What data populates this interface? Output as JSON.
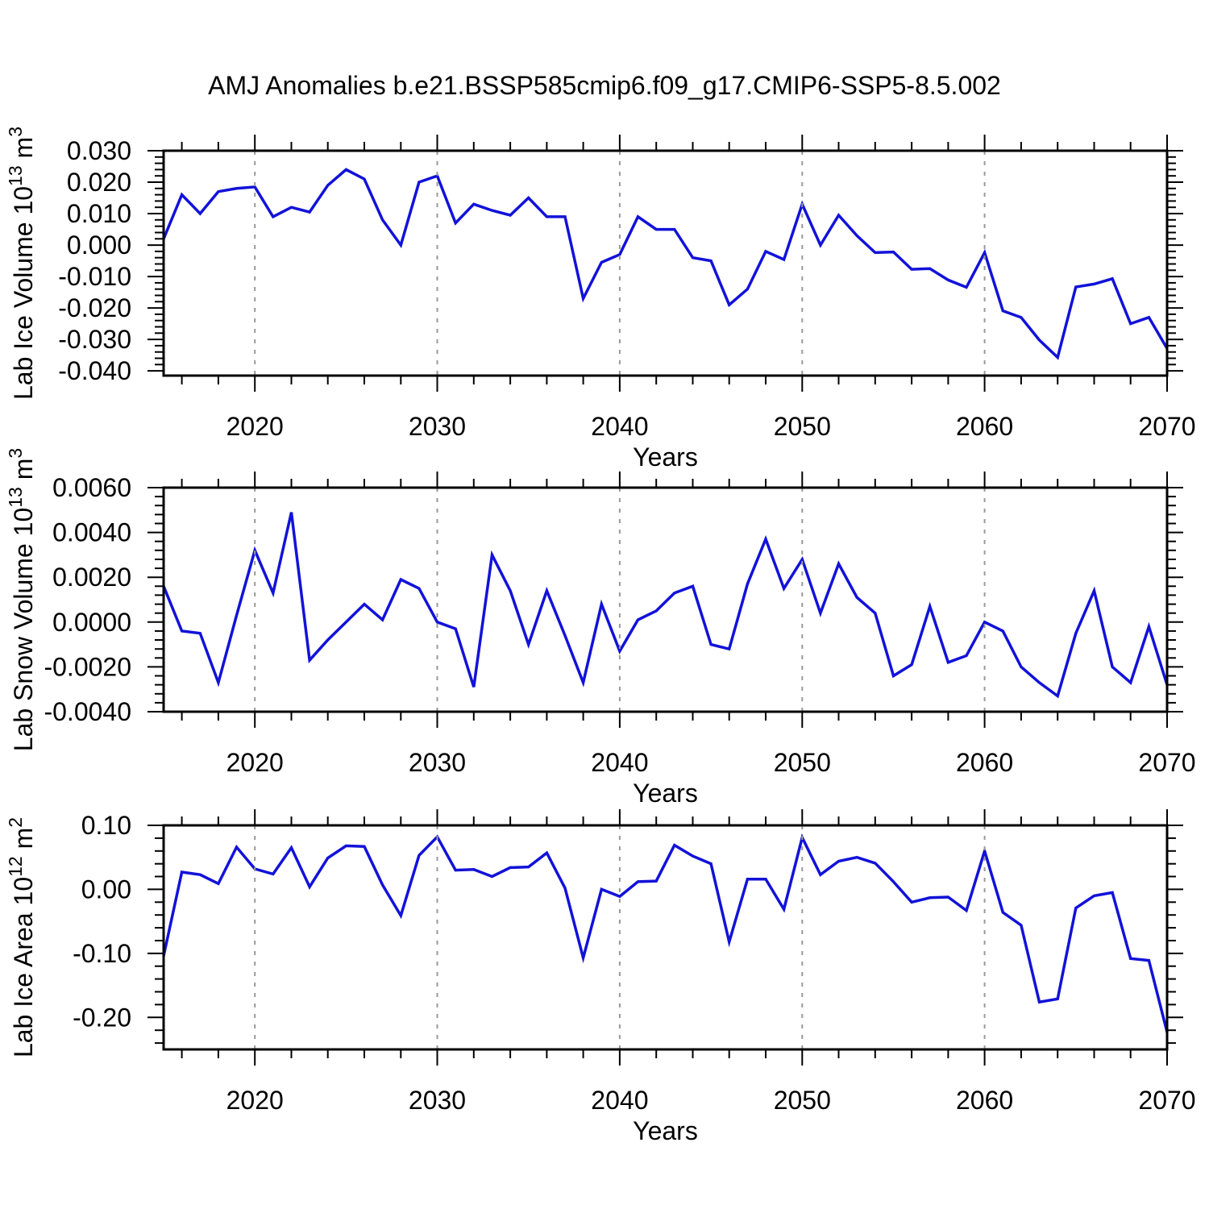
{
  "title": "AMJ Anomalies b.e21.BSSP585cmip6.f09_g17.CMIP6-SSP5-8.5.002",
  "style": {
    "line_color": "#1212d9",
    "grid_color": "#999999",
    "axis_color": "#000000",
    "background": "#ffffff"
  },
  "chart_data": [
    {
      "type": "line",
      "id": "lab-ice-volume",
      "ylabel_text": "Lab Ice Volume 10^13 m^3",
      "ylabel_parts": [
        {
          "t": "Lab Ice Volume 10"
        },
        {
          "t": "13",
          "sup": true
        },
        {
          "t": " m"
        },
        {
          "t": "3",
          "sup": true
        }
      ],
      "xlabel": "Years",
      "x_start": 2015,
      "x_step": 1,
      "xlim": [
        2015,
        2070
      ],
      "xticks_major": [
        2020,
        2030,
        2040,
        2050,
        2060,
        2070
      ],
      "xtick_labels": [
        "2020",
        "2030",
        "2040",
        "2050",
        "2060",
        "2070"
      ],
      "xticks_minor_step": 2,
      "grid_x": [
        2020,
        2030,
        2040,
        2050,
        2060
      ],
      "ylim": [
        -0.0415,
        0.03
      ],
      "yticks_major": [
        0.03,
        0.02,
        0.01,
        0.0,
        -0.01,
        -0.02,
        -0.03,
        -0.04
      ],
      "ytick_labels": [
        "0.030",
        "0.020",
        "0.010",
        "0.000",
        "-0.010",
        "-0.020",
        "-0.030",
        "-0.040"
      ],
      "yticks_minor_step": 0.002,
      "values": [
        0.002,
        0.016,
        0.01,
        0.017,
        0.018,
        0.0185,
        0.009,
        0.012,
        0.0105,
        0.019,
        0.024,
        0.021,
        0.008,
        0.0,
        0.02,
        0.022,
        0.007,
        0.013,
        0.011,
        0.0095,
        0.015,
        0.009,
        0.009,
        -0.017,
        -0.0055,
        -0.003,
        0.009,
        0.005,
        0.005,
        -0.004,
        -0.005,
        -0.019,
        -0.014,
        -0.002,
        -0.0046,
        0.013,
        0.0,
        0.0095,
        0.003,
        -0.0024,
        -0.0022,
        -0.0077,
        -0.0075,
        -0.0111,
        -0.0134,
        -0.0024,
        -0.0209,
        -0.023,
        -0.0302,
        -0.0357,
        -0.0133,
        -0.0124,
        -0.0107,
        -0.025,
        -0.023,
        -0.0329
      ]
    },
    {
      "type": "line",
      "id": "lab-snow-volume",
      "ylabel_text": "Lab Snow Volume 10^13 m^3",
      "ylabel_parts": [
        {
          "t": "Lab Snow Volume 10"
        },
        {
          "t": "13",
          "sup": true
        },
        {
          "t": " m"
        },
        {
          "t": "3",
          "sup": true
        }
      ],
      "xlabel": "Years",
      "x_start": 2015,
      "x_step": 1,
      "xlim": [
        2015,
        2070
      ],
      "xticks_major": [
        2020,
        2030,
        2040,
        2050,
        2060,
        2070
      ],
      "xtick_labels": [
        "2020",
        "2030",
        "2040",
        "2050",
        "2060",
        "2070"
      ],
      "xticks_minor_step": 2,
      "grid_x": [
        2020,
        2030,
        2040,
        2050,
        2060
      ],
      "ylim": [
        -0.004,
        0.006
      ],
      "yticks_major": [
        0.006,
        0.004,
        0.002,
        0.0,
        -0.002,
        -0.004
      ],
      "ytick_labels": [
        "0.0060",
        "0.0040",
        "0.0020",
        "0.0000",
        "-0.0020",
        "-0.0040"
      ],
      "yticks_minor_step": 0.0004,
      "values": [
        0.0016,
        -0.0004,
        -0.0005,
        -0.0027,
        0.0003,
        0.0032,
        0.0013,
        0.0049,
        -0.0017,
        -0.0008,
        0.0,
        0.0008,
        0.0001,
        0.0019,
        0.0015,
        0.0,
        -0.0003,
        -0.0029,
        0.003,
        0.0014,
        -0.001,
        0.0014,
        -0.0006,
        -0.0027,
        0.0008,
        -0.0013,
        0.0001,
        0.0005,
        0.0013,
        0.0016,
        -0.001,
        -0.0012,
        0.0017,
        0.0037,
        0.0015,
        0.0028,
        0.0004,
        0.0026,
        0.0011,
        0.0004,
        -0.0024,
        -0.0019,
        0.0007,
        -0.0018,
        -0.0015,
        0.0,
        -0.0004,
        -0.002,
        -0.0027,
        -0.0033,
        -0.0005,
        0.0014,
        -0.002,
        -0.0027,
        -0.0002,
        -0.0028
      ]
    },
    {
      "type": "line",
      "id": "lab-ice-area",
      "ylabel_text": "Lab Ice Area 10^12 m^2",
      "ylabel_parts": [
        {
          "t": "Lab Ice Area 10"
        },
        {
          "t": "12",
          "sup": true
        },
        {
          "t": " m"
        },
        {
          "t": "2",
          "sup": true
        }
      ],
      "xlabel": "Years",
      "x_start": 2015,
      "x_step": 1,
      "xlim": [
        2015,
        2070
      ],
      "xticks_major": [
        2020,
        2030,
        2040,
        2050,
        2060,
        2070
      ],
      "xtick_labels": [
        "2020",
        "2030",
        "2040",
        "2050",
        "2060",
        "2070"
      ],
      "xticks_minor_step": 2,
      "grid_x": [
        2020,
        2030,
        2040,
        2050,
        2060
      ],
      "ylim": [
        -0.25,
        0.1
      ],
      "yticks_major": [
        0.1,
        0.0,
        -0.1,
        -0.2
      ],
      "ytick_labels": [
        "0.10",
        "0.00",
        "-0.10",
        "-0.20"
      ],
      "yticks_minor_step": 0.02,
      "values": [
        -0.104,
        0.027,
        0.023,
        0.009,
        0.066,
        0.032,
        0.024,
        0.065,
        0.004,
        0.049,
        0.068,
        0.067,
        0.007,
        -0.041,
        0.053,
        0.082,
        0.03,
        0.031,
        0.02,
        0.034,
        0.035,
        0.057,
        0.002,
        -0.107,
        0.0,
        -0.011,
        0.012,
        0.013,
        0.069,
        0.052,
        0.04,
        -0.082,
        0.016,
        0.016,
        -0.031,
        0.081,
        0.023,
        0.044,
        0.05,
        0.041,
        0.012,
        -0.02,
        -0.013,
        -0.012,
        -0.033,
        0.06,
        -0.036,
        -0.056,
        -0.176,
        -0.171,
        -0.029,
        -0.01,
        -0.005,
        -0.108,
        -0.111,
        -0.223
      ]
    }
  ]
}
